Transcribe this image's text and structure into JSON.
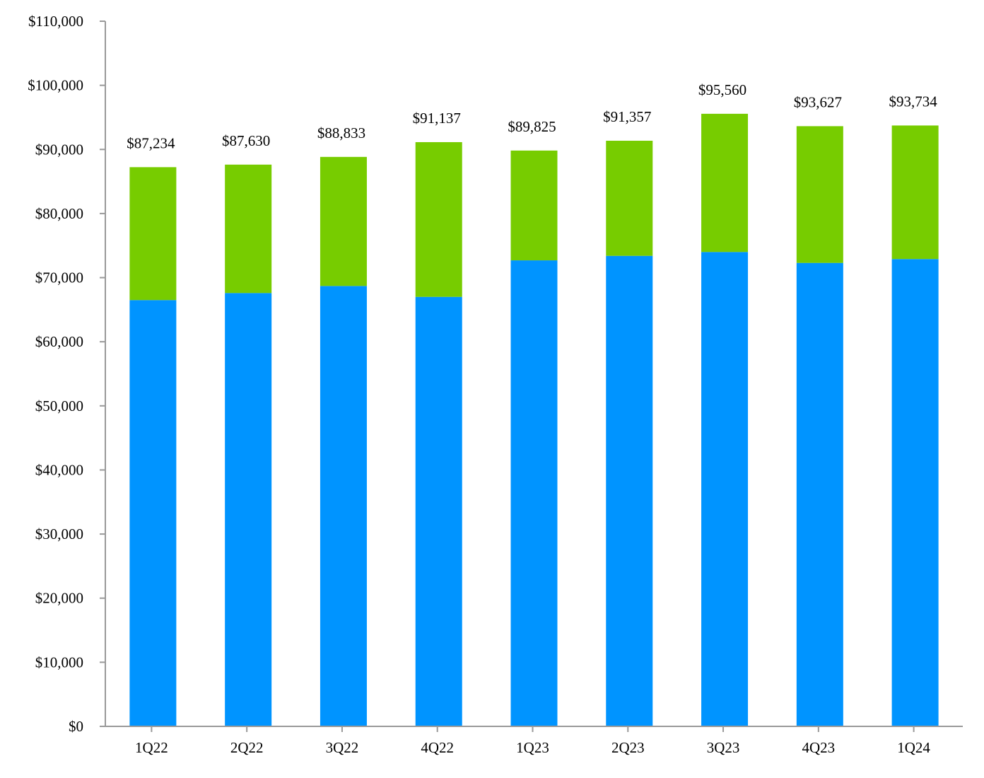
{
  "chart_data": {
    "type": "bar",
    "stacked": true,
    "title": "",
    "xlabel": "",
    "ylabel": "",
    "ylim": [
      0,
      110000
    ],
    "yticks": [
      0,
      10000,
      20000,
      30000,
      40000,
      50000,
      60000,
      70000,
      80000,
      90000,
      100000,
      110000
    ],
    "ytick_labels": [
      "$0",
      "$10,000",
      "$20,000",
      "$30,000",
      "$40,000",
      "$50,000",
      "$60,000",
      "$70,000",
      "$80,000",
      "$90,000",
      "$100,000",
      "$110,000"
    ],
    "grid": false,
    "legend": "none",
    "categories": [
      "1Q22",
      "2Q22",
      "3Q22",
      "4Q22",
      "1Q23",
      "2Q23",
      "3Q23",
      "4Q23",
      "1Q24"
    ],
    "series": [
      {
        "color": "#0094FF",
        "values": [
          66500,
          67600,
          68700,
          67000,
          72700,
          73400,
          74000,
          72300,
          72900
        ]
      },
      {
        "color": "#77CC00",
        "values": [
          20734,
          20030,
          20133,
          24137,
          17125,
          17957,
          21560,
          21327,
          20834
        ]
      }
    ],
    "totals": [
      87234,
      87630,
      88833,
      91137,
      89825,
      91357,
      95560,
      93627,
      93734
    ],
    "total_labels": [
      "$87,234",
      "$87,630",
      "$88,833",
      "$91,137",
      "$89,825",
      "$91,357",
      "$95,560",
      "$93,627",
      "$93,734"
    ]
  }
}
